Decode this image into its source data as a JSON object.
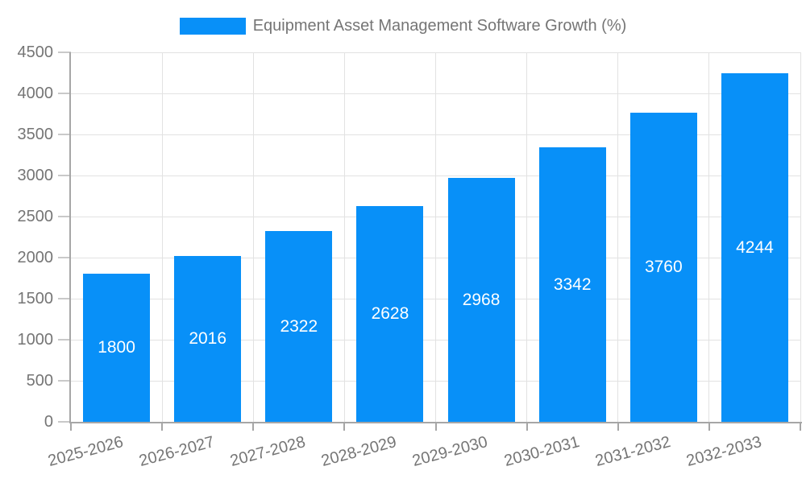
{
  "chart_data": {
    "type": "bar",
    "title": "Equipment Asset Management Software Growth (%)",
    "categories": [
      "2025-2026",
      "2026-2027",
      "2027-2028",
      "2028-2029",
      "2029-2030",
      "2030-2031",
      "2031-2032",
      "2032-2033"
    ],
    "values": [
      1800,
      2016,
      2322,
      2628,
      2968,
      3342,
      3760,
      4244
    ],
    "xlabel": "",
    "ylabel": "",
    "ylim": [
      0,
      4500
    ],
    "ytick_step": 500,
    "yticks": [
      0,
      500,
      1000,
      1500,
      2000,
      2500,
      3000,
      3500,
      4000,
      4500
    ],
    "grid": true,
    "legend_position": "top-center",
    "x_label_rotation_deg": -15,
    "value_labels_inside_bars": true,
    "colors": {
      "bar": "#0890F8",
      "value_label": "#FFFFFF",
      "axis_text": "#757575",
      "grid_line": "#E2E2E2",
      "tick_line": "#C9C9C9",
      "axis_line": "#A6A6A6",
      "background": "#FFFFFF"
    }
  }
}
